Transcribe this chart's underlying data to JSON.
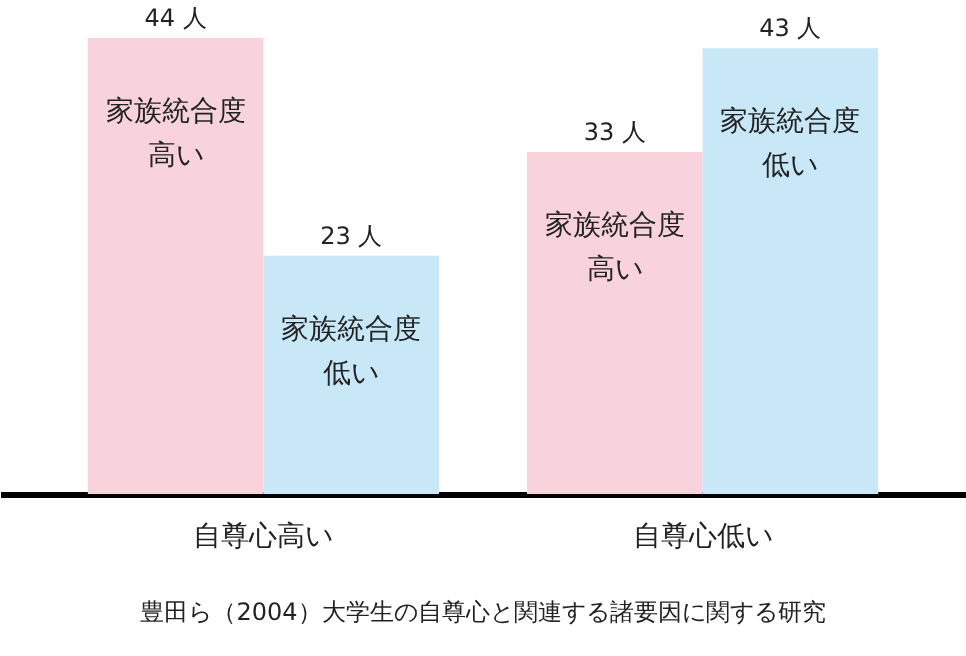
{
  "chart_data": {
    "type": "bar",
    "categories": [
      "自尊心高い",
      "自尊心低い"
    ],
    "series": [
      {
        "name": "家族統合度高い",
        "color": "#f8d3dc",
        "values": [
          44,
          33
        ],
        "value_labels": [
          "44 人",
          "33 人"
        ]
      },
      {
        "name": "家族統合度低い",
        "color": "#c8e8f8",
        "values": [
          23,
          43
        ],
        "value_labels": [
          "23 人",
          "43 人"
        ]
      }
    ],
    "grid": false,
    "legend": false,
    "annotations": [
      "豊田ら（2004）大学生の自尊心と関連する諸要因に関する研究"
    ]
  }
}
